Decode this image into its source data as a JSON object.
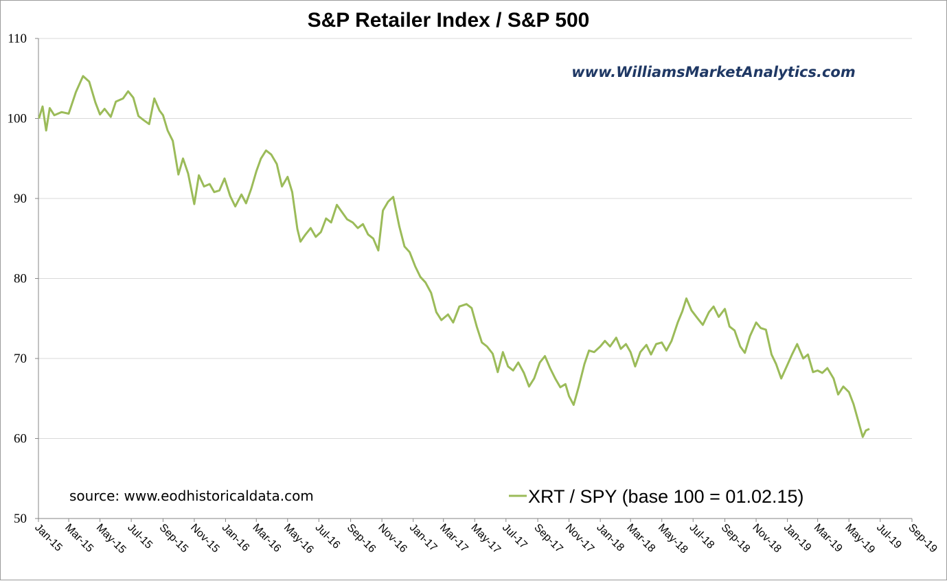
{
  "chart_data": {
    "type": "line",
    "title": "S&P Retailer Index  / S&P 500",
    "xlabel": "",
    "ylabel": "",
    "ylim": [
      50,
      110
    ],
    "yticks": [
      "50",
      "60",
      "70",
      "80",
      "90",
      "100",
      "110"
    ],
    "xticks": [
      "Jan-15",
      "Mar-15",
      "May-15",
      "Jul-15",
      "Sep-15",
      "Nov-15",
      "Jan-16",
      "Mar-16",
      "May-16",
      "Jul-16",
      "Sep-16",
      "Nov-16",
      "Jan-17",
      "Mar-17",
      "May-17",
      "Jul-17",
      "Sep-17",
      "Nov-17",
      "Jan-18",
      "Mar-18",
      "May-18",
      "Jul-18",
      "Sep-18",
      "Nov-18",
      "Jan-19",
      "Mar-19",
      "May-19",
      "Jul-19",
      "Sep-19"
    ],
    "grid": true,
    "legend_position": "bottom-right",
    "series": [
      {
        "name": "XRT / SPY (base 100 = 01.02.15)",
        "color": "#9bbb59",
        "points": [
          [
            "2015-01-02",
            100.0
          ],
          [
            "2015-01-09",
            101.5
          ],
          [
            "2015-01-16",
            98.5
          ],
          [
            "2015-01-23",
            101.3
          ],
          [
            "2015-02-01",
            100.4
          ],
          [
            "2015-02-15",
            100.8
          ],
          [
            "2015-03-01",
            100.6
          ],
          [
            "2015-03-15",
            103.3
          ],
          [
            "2015-03-29",
            105.3
          ],
          [
            "2015-04-10",
            104.6
          ],
          [
            "2015-04-22",
            102.0
          ],
          [
            "2015-05-01",
            100.5
          ],
          [
            "2015-05-10",
            101.2
          ],
          [
            "2015-05-22",
            100.2
          ],
          [
            "2015-06-01",
            102.1
          ],
          [
            "2015-06-15",
            102.5
          ],
          [
            "2015-06-25",
            103.4
          ],
          [
            "2015-07-05",
            102.6
          ],
          [
            "2015-07-15",
            100.3
          ],
          [
            "2015-07-25",
            99.8
          ],
          [
            "2015-08-05",
            99.3
          ],
          [
            "2015-08-15",
            102.5
          ],
          [
            "2015-08-25",
            101.0
          ],
          [
            "2015-09-01",
            100.4
          ],
          [
            "2015-09-10",
            98.5
          ],
          [
            "2015-09-20",
            97.2
          ],
          [
            "2015-10-01",
            93.0
          ],
          [
            "2015-10-10",
            95.0
          ],
          [
            "2015-10-20",
            93.1
          ],
          [
            "2015-11-01",
            89.3
          ],
          [
            "2015-11-10",
            92.9
          ],
          [
            "2015-11-20",
            91.5
          ],
          [
            "2015-12-01",
            91.8
          ],
          [
            "2015-12-10",
            90.8
          ],
          [
            "2015-12-20",
            91.0
          ],
          [
            "2015-12-30",
            92.5
          ],
          [
            "2016-01-10",
            90.3
          ],
          [
            "2016-01-20",
            89.0
          ],
          [
            "2016-02-01",
            90.5
          ],
          [
            "2016-02-10",
            89.4
          ],
          [
            "2016-02-20",
            91.2
          ],
          [
            "2016-03-01",
            93.4
          ],
          [
            "2016-03-10",
            95.0
          ],
          [
            "2016-03-20",
            96.0
          ],
          [
            "2016-03-30",
            95.5
          ],
          [
            "2016-04-10",
            94.3
          ],
          [
            "2016-04-20",
            91.5
          ],
          [
            "2016-05-01",
            92.7
          ],
          [
            "2016-05-10",
            90.8
          ],
          [
            "2016-05-20",
            86.2
          ],
          [
            "2016-05-26",
            84.6
          ],
          [
            "2016-06-05",
            85.5
          ],
          [
            "2016-06-15",
            86.3
          ],
          [
            "2016-06-25",
            85.2
          ],
          [
            "2016-07-05",
            85.8
          ],
          [
            "2016-07-15",
            87.5
          ],
          [
            "2016-07-25",
            87.0
          ],
          [
            "2016-08-05",
            89.2
          ],
          [
            "2016-08-15",
            88.3
          ],
          [
            "2016-08-25",
            87.4
          ],
          [
            "2016-09-05",
            87.0
          ],
          [
            "2016-09-15",
            86.3
          ],
          [
            "2016-09-25",
            86.8
          ],
          [
            "2016-10-05",
            85.5
          ],
          [
            "2016-10-15",
            85.0
          ],
          [
            "2016-10-25",
            83.5
          ],
          [
            "2016-11-03",
            88.5
          ],
          [
            "2016-11-13",
            89.6
          ],
          [
            "2016-11-23",
            90.2
          ],
          [
            "2016-12-05",
            86.5
          ],
          [
            "2016-12-15",
            84.0
          ],
          [
            "2016-12-25",
            83.3
          ],
          [
            "2017-01-05",
            81.5
          ],
          [
            "2017-01-15",
            80.2
          ],
          [
            "2017-01-25",
            79.5
          ],
          [
            "2017-02-05",
            78.2
          ],
          [
            "2017-02-15",
            75.8
          ],
          [
            "2017-02-25",
            74.8
          ],
          [
            "2017-03-10",
            75.5
          ],
          [
            "2017-03-20",
            74.5
          ],
          [
            "2017-04-01",
            76.5
          ],
          [
            "2017-04-15",
            76.8
          ],
          [
            "2017-04-25",
            76.3
          ],
          [
            "2017-05-05",
            74.0
          ],
          [
            "2017-05-15",
            72.0
          ],
          [
            "2017-05-25",
            71.5
          ],
          [
            "2017-06-05",
            70.6
          ],
          [
            "2017-06-15",
            68.3
          ],
          [
            "2017-06-25",
            70.8
          ],
          [
            "2017-07-05",
            69.0
          ],
          [
            "2017-07-15",
            68.5
          ],
          [
            "2017-07-25",
            69.5
          ],
          [
            "2017-08-05",
            68.2
          ],
          [
            "2017-08-15",
            66.5
          ],
          [
            "2017-08-25",
            67.5
          ],
          [
            "2017-09-05",
            69.5
          ],
          [
            "2017-09-15",
            70.3
          ],
          [
            "2017-09-25",
            68.8
          ],
          [
            "2017-10-05",
            67.5
          ],
          [
            "2017-10-15",
            66.4
          ],
          [
            "2017-10-25",
            66.8
          ],
          [
            "2017-11-01",
            65.3
          ],
          [
            "2017-11-10",
            64.2
          ],
          [
            "2017-11-20",
            66.5
          ],
          [
            "2017-12-01",
            69.3
          ],
          [
            "2017-12-10",
            71.0
          ],
          [
            "2017-12-20",
            70.8
          ],
          [
            "2018-01-01",
            71.5
          ],
          [
            "2018-01-10",
            72.2
          ],
          [
            "2018-01-20",
            71.5
          ],
          [
            "2018-02-01",
            72.6
          ],
          [
            "2018-02-10",
            71.2
          ],
          [
            "2018-02-20",
            71.8
          ],
          [
            "2018-03-01",
            70.8
          ],
          [
            "2018-03-10",
            69.0
          ],
          [
            "2018-03-20",
            70.8
          ],
          [
            "2018-04-01",
            71.7
          ],
          [
            "2018-04-10",
            70.5
          ],
          [
            "2018-04-20",
            71.8
          ],
          [
            "2018-05-01",
            72.0
          ],
          [
            "2018-05-10",
            71.0
          ],
          [
            "2018-05-20",
            72.2
          ],
          [
            "2018-06-01",
            74.5
          ],
          [
            "2018-06-10",
            75.9
          ],
          [
            "2018-06-18",
            77.5
          ],
          [
            "2018-06-28",
            76.0
          ],
          [
            "2018-07-10",
            75.0
          ],
          [
            "2018-07-20",
            74.2
          ],
          [
            "2018-08-01",
            75.8
          ],
          [
            "2018-08-10",
            76.5
          ],
          [
            "2018-08-20",
            75.2
          ],
          [
            "2018-09-01",
            76.2
          ],
          [
            "2018-09-10",
            74.0
          ],
          [
            "2018-09-20",
            73.5
          ],
          [
            "2018-10-01",
            71.5
          ],
          [
            "2018-10-10",
            70.7
          ],
          [
            "2018-10-20",
            72.8
          ],
          [
            "2018-11-01",
            74.5
          ],
          [
            "2018-11-10",
            73.8
          ],
          [
            "2018-11-20",
            73.6
          ],
          [
            "2018-12-01",
            70.5
          ],
          [
            "2018-12-10",
            69.3
          ],
          [
            "2018-12-20",
            67.5
          ],
          [
            "2019-01-01",
            69.2
          ],
          [
            "2019-01-10",
            70.5
          ],
          [
            "2019-01-20",
            71.8
          ],
          [
            "2019-02-01",
            70.0
          ],
          [
            "2019-02-10",
            70.5
          ],
          [
            "2019-02-20",
            68.3
          ],
          [
            "2019-03-01",
            68.5
          ],
          [
            "2019-03-10",
            68.2
          ],
          [
            "2019-03-20",
            68.8
          ],
          [
            "2019-04-01",
            67.5
          ],
          [
            "2019-04-10",
            65.5
          ],
          [
            "2019-04-20",
            66.5
          ],
          [
            "2019-05-01",
            65.8
          ],
          [
            "2019-05-10",
            64.3
          ],
          [
            "2019-05-20",
            62.0
          ],
          [
            "2019-05-28",
            60.2
          ],
          [
            "2019-06-03",
            61.0
          ],
          [
            "2019-06-10",
            61.2
          ]
        ]
      }
    ]
  },
  "annotations": {
    "watermark": "www.WilliamsMarketAnalytics.com",
    "source": "source: www.eodhistoricaldata.com"
  },
  "colors": {
    "line": "#9bbb59",
    "gridline": "#d9d9d9",
    "axis": "#868686",
    "watermark": "#1f3864"
  }
}
